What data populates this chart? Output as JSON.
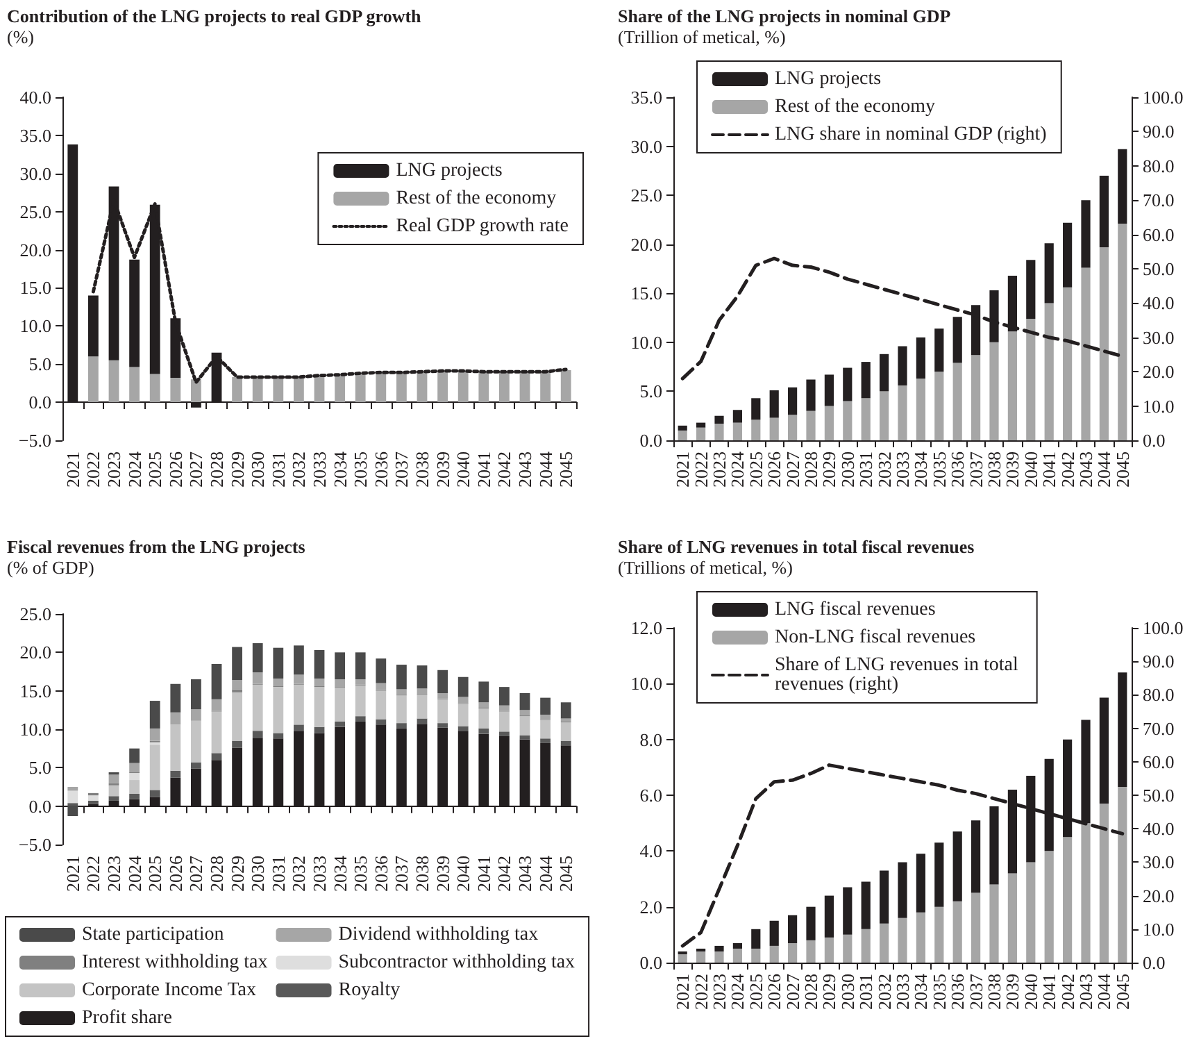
{
  "chart_data": [
    {
      "type": "bar",
      "stacked": true,
      "title": "Contribution of the LNG projects to real GDP growth",
      "subtitle": "(%)",
      "legend": "right",
      "categories": [
        "2021",
        "2022",
        "2023",
        "2024",
        "2025",
        "2026",
        "2027",
        "2028",
        "2029",
        "2030",
        "2031",
        "2032",
        "2033",
        "2034",
        "2035",
        "2036",
        "2037",
        "2038",
        "2039",
        "2040",
        "2041",
        "2042",
        "2043",
        "2044",
        "2045"
      ],
      "ylim": [
        -5,
        40
      ],
      "yticks": [
        {
          "value": -5,
          "label": "−5.0"
        },
        {
          "value": 0,
          "label": "0.0"
        },
        {
          "value": 5,
          "label": "5.0"
        },
        {
          "value": 10,
          "label": "10.0"
        },
        {
          "value": 15,
          "label": "15.0"
        },
        {
          "value": 20,
          "label": "20.0"
        },
        {
          "value": 25,
          "label": "25.0"
        },
        {
          "value": 30,
          "label": "30.0"
        },
        {
          "value": 35,
          "label": "35.0"
        },
        {
          "value": 40,
          "label": "40.0"
        }
      ],
      "series": [
        {
          "name": "Rest of the economy",
          "color": "#a6a6a6",
          "values": [
            0,
            6.0,
            5.5,
            4.6,
            3.7,
            3.2,
            3.0,
            0,
            3.3,
            3.3,
            3.3,
            3.3,
            3.5,
            3.6,
            3.8,
            3.9,
            3.9,
            4.0,
            4.1,
            4.1,
            4.0,
            4.0,
            4.0,
            4.0,
            4.2
          ]
        },
        {
          "name": "LNG projects",
          "color": "#231f20",
          "values": [
            33.8,
            8.0,
            22.8,
            14.1,
            22.2,
            7.8,
            -0.7,
            6.5,
            0,
            0,
            0,
            0,
            0,
            0,
            0,
            0,
            0,
            0,
            0,
            0,
            0,
            0,
            0,
            0,
            0
          ]
        },
        {
          "name": "Real GDP growth rate",
          "type": "line",
          "line_style": "dotted",
          "color": "#231f20",
          "values": [
            null,
            14.5,
            26.5,
            19.0,
            26.0,
            10.5,
            2.6,
            6.0,
            3.3,
            3.3,
            3.3,
            3.3,
            3.5,
            3.6,
            3.8,
            3.9,
            3.9,
            4.0,
            4.1,
            4.1,
            4.0,
            4.0,
            4.0,
            4.0,
            4.3
          ]
        }
      ]
    },
    {
      "type": "bar",
      "stacked": true,
      "title": "Share of the LNG projects in nominal GDP",
      "subtitle": "(Trillion of metical, %)",
      "legend": "top left",
      "categories": [
        "2021",
        "2022",
        "2023",
        "2024",
        "2025",
        "2026",
        "2027",
        "2028",
        "2029",
        "2030",
        "2031",
        "2032",
        "2033",
        "2034",
        "2035",
        "2036",
        "2037",
        "2038",
        "2039",
        "2040",
        "2041",
        "2042",
        "2043",
        "2044",
        "2045"
      ],
      "ylim": [
        0,
        35
      ],
      "yticks": [
        {
          "value": 0,
          "label": "0.0"
        },
        {
          "value": 5,
          "label": "5.0"
        },
        {
          "value": 10,
          "label": "10.0"
        },
        {
          "value": 15,
          "label": "15.0"
        },
        {
          "value": 20,
          "label": "20.0"
        },
        {
          "value": 25,
          "label": "25.0"
        },
        {
          "value": 30,
          "label": "30.0"
        },
        {
          "value": 35,
          "label": "35.0"
        }
      ],
      "y2lim": [
        0,
        100
      ],
      "y2ticks": [
        {
          "value": 0,
          "label": "0.0"
        },
        {
          "value": 10,
          "label": "10.0"
        },
        {
          "value": 20,
          "label": "20.0"
        },
        {
          "value": 30,
          "label": "30.0"
        },
        {
          "value": 40,
          "label": "40.0"
        },
        {
          "value": 50,
          "label": "50.0"
        },
        {
          "value": 60,
          "label": "60.0"
        },
        {
          "value": 70,
          "label": "70.0"
        },
        {
          "value": 80,
          "label": "80.0"
        },
        {
          "value": 90,
          "label": "90.0"
        },
        {
          "value": 100,
          "label": "100.0"
        }
      ],
      "series": [
        {
          "name": "Rest of the economy",
          "color": "#a6a6a6",
          "values": [
            1.0,
            1.3,
            1.7,
            1.8,
            2.1,
            2.3,
            2.6,
            3.0,
            3.5,
            4.0,
            4.3,
            5.0,
            5.6,
            6.3,
            7.0,
            7.9,
            8.7,
            10.0,
            11.1,
            12.4,
            14.0,
            15.6,
            17.6,
            19.7,
            22.1
          ]
        },
        {
          "name": "LNG projects",
          "color": "#231f20",
          "values": [
            0.5,
            0.5,
            0.8,
            1.3,
            2.2,
            2.8,
            2.8,
            3.2,
            3.2,
            3.4,
            3.7,
            3.8,
            4.0,
            4.2,
            4.4,
            4.7,
            5.1,
            5.3,
            5.7,
            6.0,
            6.1,
            6.6,
            6.9,
            7.3,
            7.6
          ]
        },
        {
          "name": "LNG share in nominal GDP (right)",
          "type": "line",
          "axis": "y2",
          "line_style": "dashed",
          "color": "#231f20",
          "values": [
            18,
            23,
            35,
            42,
            51,
            53,
            51,
            50.5,
            49,
            47,
            45.5,
            44,
            42.5,
            41,
            39.5,
            38,
            36.5,
            34.5,
            33,
            31.5,
            30,
            29,
            27.5,
            26,
            24.5
          ]
        }
      ]
    },
    {
      "type": "bar",
      "stacked": true,
      "title": "Fiscal revenues from the LNG projects",
      "subtitle": "(% of GDP)",
      "legend": "bottom",
      "categories": [
        "2021",
        "2022",
        "2023",
        "2024",
        "2025",
        "2026",
        "2027",
        "2028",
        "2029",
        "2030",
        "2031",
        "2032",
        "2033",
        "2034",
        "2035",
        "2036",
        "2037",
        "2038",
        "2039",
        "2040",
        "2041",
        "2042",
        "2043",
        "2044",
        "2045"
      ],
      "ylim": [
        -5,
        25
      ],
      "yticks": [
        {
          "value": -5,
          "label": "−5.0"
        },
        {
          "value": 0,
          "label": "0.0"
        },
        {
          "value": 5,
          "label": "5.0"
        },
        {
          "value": 10,
          "label": "10.0"
        },
        {
          "value": 15,
          "label": "15.0"
        },
        {
          "value": 20,
          "label": "20.0"
        },
        {
          "value": 25,
          "label": "25.0"
        }
      ],
      "series": [
        {
          "name": "Profit share",
          "color": "#231f20",
          "values": [
            0,
            0.3,
            0.7,
            0.9,
            1.2,
            3.7,
            4.9,
            6.0,
            7.6,
            8.9,
            8.8,
            9.8,
            9.5,
            10.3,
            11.0,
            10.6,
            10.1,
            10.7,
            10.2,
            9.8,
            9.4,
            9.1,
            8.7,
            8.2,
            7.9
          ]
        },
        {
          "name": "Royalty",
          "color": "#595959",
          "values": [
            0.4,
            0.4,
            0.6,
            0.7,
            0.9,
            0.9,
            0.8,
            0.9,
            0.9,
            0.9,
            0.7,
            0.8,
            0.8,
            0.7,
            0.7,
            0.7,
            0.7,
            0.7,
            0.6,
            0.6,
            0.7,
            0.6,
            0.5,
            0.6,
            0.6
          ]
        },
        {
          "name": "Corporate Income Tax",
          "color": "#c4c4c4",
          "values": [
            0,
            0,
            1.4,
            1.8,
            5.9,
            6.0,
            5.4,
            5.4,
            6.3,
            6.0,
            6.0,
            5.2,
            5.2,
            4.4,
            4.0,
            3.7,
            3.6,
            3.1,
            3.1,
            2.9,
            2.6,
            2.6,
            2.5,
            2.4,
            2.4
          ]
        },
        {
          "name": "Subcontractor withholding tax",
          "color": "#dedede",
          "values": [
            1.6,
            0.7,
            0,
            0.9,
            0.3,
            null,
            null,
            0,
            0,
            0,
            0,
            0,
            0,
            0,
            0,
            0,
            0,
            0,
            0,
            0,
            0,
            0,
            0,
            0,
            0
          ]
        },
        {
          "name": "Interest withholding tax",
          "color": "#808080",
          "values": [
            0,
            0.3,
            0.3,
            0.1,
            0.2,
            0,
            0,
            0.1,
            0.4,
            0.1,
            0.1,
            0.1,
            0.1,
            0.1,
            0.1,
            0.1,
            0.1,
            0.1,
            0.1,
            0.1,
            0.1,
            0.1,
            0.1,
            0.1,
            0.1
          ]
        },
        {
          "name": "Dividend withholding tax",
          "color": "#a6a6a6",
          "values": [
            0.5,
            null,
            1.1,
            1.2,
            1.6,
            1.6,
            1.5,
            1.5,
            1.2,
            1.5,
            1.0,
            1.2,
            1.0,
            1.0,
            0.7,
            0.9,
            0.7,
            0.7,
            0.7,
            0.8,
            0.7,
            0.7,
            0.7,
            0.6,
            0.4
          ]
        },
        {
          "name": "State participation",
          "color": "#4a4a4a",
          "values": [
            -1.3,
            0,
            0.3,
            1.9,
            3.6,
            3.7,
            3.9,
            4.6,
            4.3,
            3.8,
            4.0,
            3.8,
            3.7,
            3.5,
            3.5,
            3.2,
            3.2,
            3.0,
            3.0,
            2.6,
            2.7,
            2.4,
            2.2,
            2.2,
            2.1
          ]
        }
      ]
    },
    {
      "type": "bar",
      "stacked": true,
      "title": "Share of LNG revenues in total fiscal revenues",
      "subtitle": "(Trillions of metical, %)",
      "legend": "top left",
      "categories": [
        "2021",
        "2022",
        "2023",
        "2024",
        "2025",
        "2026",
        "2027",
        "2028",
        "2029",
        "2030",
        "2031",
        "2032",
        "2033",
        "2034",
        "2035",
        "2036",
        "2037",
        "2038",
        "2039",
        "2040",
        "2041",
        "2042",
        "2043",
        "2044",
        "2045"
      ],
      "ylim": [
        0,
        12
      ],
      "yticks": [
        {
          "value": 0,
          "label": "0.0"
        },
        {
          "value": 2,
          "label": "2.0"
        },
        {
          "value": 4,
          "label": "4.0"
        },
        {
          "value": 6,
          "label": "6.0"
        },
        {
          "value": 8,
          "label": "8.0"
        },
        {
          "value": 10,
          "label": "10.0"
        },
        {
          "value": 12,
          "label": "12.0"
        }
      ],
      "y2lim": [
        0,
        100
      ],
      "y2ticks": [
        {
          "value": 0,
          "label": "0.0"
        },
        {
          "value": 10,
          "label": "10.0"
        },
        {
          "value": 20,
          "label": "20.0"
        },
        {
          "value": 30,
          "label": "30.0"
        },
        {
          "value": 40,
          "label": "40.0"
        },
        {
          "value": 50,
          "label": "50.0"
        },
        {
          "value": 60,
          "label": "60.0"
        },
        {
          "value": 70,
          "label": "70.0"
        },
        {
          "value": 80,
          "label": "80.0"
        },
        {
          "value": 90,
          "label": "90.0"
        },
        {
          "value": 100,
          "label": "100.0"
        }
      ],
      "series": [
        {
          "name": "Non-LNG fiscal revenues",
          "color": "#a6a6a6",
          "values": [
            0.3,
            0.4,
            0.4,
            0.5,
            0.5,
            0.6,
            0.7,
            0.8,
            0.9,
            1.0,
            1.2,
            1.4,
            1.6,
            1.8,
            2.0,
            2.2,
            2.5,
            2.8,
            3.2,
            3.6,
            4.0,
            4.5,
            5.0,
            5.7,
            6.3
          ]
        },
        {
          "name": "LNG fiscal revenues",
          "color": "#231f20",
          "values": [
            0.1,
            0.1,
            0.2,
            0.2,
            0.7,
            0.9,
            1.0,
            1.2,
            1.5,
            1.7,
            1.7,
            1.9,
            2.0,
            2.1,
            2.3,
            2.5,
            2.6,
            2.8,
            3.0,
            3.1,
            3.3,
            3.5,
            3.7,
            3.8,
            4.1
          ]
        },
        {
          "name": "Share of LNG revenues in total revenues (right)",
          "type": "line",
          "axis": "y2",
          "line_style": "dashed",
          "color": "#231f20",
          "values": [
            5,
            9,
            22,
            35,
            49,
            54,
            54.5,
            56.5,
            59,
            58,
            57,
            56,
            55,
            54,
            53,
            51.5,
            50.5,
            49,
            47.5,
            46,
            44.5,
            43,
            41.5,
            40,
            38.5
          ]
        }
      ]
    }
  ]
}
